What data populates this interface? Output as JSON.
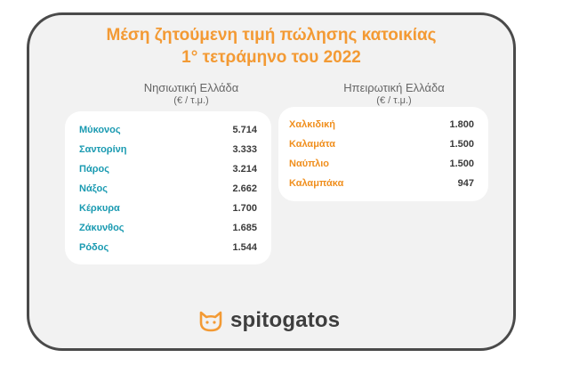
{
  "title": {
    "line1": "Μέση ζητούμενη τιμή πώλησης κατοικίας",
    "line2": "1° τετράμηνο του 2022"
  },
  "island": {
    "heading": "Νησιωτική Ελλάδα",
    "unit": "(€ / τ.μ.)",
    "rows": [
      {
        "name": "Μύκονος",
        "value": "5.714"
      },
      {
        "name": "Σαντορίνη",
        "value": "3.333"
      },
      {
        "name": "Πάρος",
        "value": "3.214"
      },
      {
        "name": "Νάξος",
        "value": "2.662"
      },
      {
        "name": "Κέρκυρα",
        "value": "1.700"
      },
      {
        "name": "Ζάκυνθος",
        "value": "1.685"
      },
      {
        "name": "Ρόδος",
        "value": "1.544"
      }
    ]
  },
  "mainland": {
    "heading": "Ηπειρωτική Ελλάδα",
    "unit": "(€ / τ.μ.)",
    "rows": [
      {
        "name": "Χαλκιδική",
        "value": "1.800"
      },
      {
        "name": "Καλαμάτα",
        "value": "1.500"
      },
      {
        "name": "Ναύπλιο",
        "value": "1.500"
      },
      {
        "name": "Καλαμπάκα",
        "value": "947"
      }
    ]
  },
  "logo": {
    "brand": "spitogatos",
    "icon": "cat-head-icon"
  },
  "colors": {
    "accent_orange": "#f39a34",
    "island_teal": "#1a9ab1",
    "frame_border": "#4a4a4a",
    "frame_bg": "#f2f2f2"
  }
}
